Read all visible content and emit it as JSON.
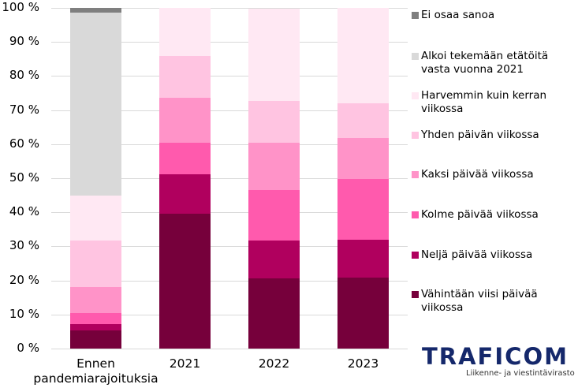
{
  "chart_data": {
    "type": "bar",
    "stacked": true,
    "percent": true,
    "title": "",
    "xlabel": "",
    "ylabel": "",
    "ylim": [
      0,
      100
    ],
    "yticks": [
      "0 %",
      "10 %",
      "20 %",
      "30 %",
      "40 %",
      "50 %",
      "60 %",
      "70 %",
      "80 %",
      "90 %",
      "100 %"
    ],
    "categories": [
      "Ennen pandemiarajoituksia",
      "2021",
      "2022",
      "2023"
    ],
    "series": [
      {
        "name": "Vähintään viisi päivää viikossa",
        "color": "#76003b",
        "values": [
          5.3,
          39.6,
          20.7,
          20.8
        ]
      },
      {
        "name": "Neljä päivää viikossa",
        "color": "#b0005e",
        "values": [
          1.9,
          11.6,
          11.0,
          11.1
        ]
      },
      {
        "name": "Kolme päivää viikossa",
        "color": "#ff5aad",
        "values": [
          3.2,
          9.2,
          14.9,
          17.9
        ]
      },
      {
        "name": "Kaksi päivää viikossa",
        "color": "#ff93c8",
        "values": [
          7.6,
          13.2,
          13.8,
          12.0
        ]
      },
      {
        "name": "Yhden päivän viikossa",
        "color": "#ffc4e1",
        "values": [
          13.8,
          12.3,
          12.3,
          10.2
        ]
      },
      {
        "name": "Harvemmin kuin kerran viikossa",
        "color": "#ffe8f3",
        "values": [
          13.0,
          14.1,
          27.1,
          28.0
        ]
      },
      {
        "name": "Alkoi tekemään etätöitä vasta vuonna 2021",
        "color": "#d9d9d9",
        "values": [
          53.9,
          0,
          0,
          0
        ]
      },
      {
        "name": "Ei osaa sanoa",
        "color": "#7f7f7f",
        "values": [
          1.3,
          0,
          0,
          0
        ]
      }
    ],
    "grid": true,
    "legend_position": "right"
  },
  "axis": {
    "y_labels": [
      "100 %",
      "90 %",
      "80 %",
      "70 %",
      "60 %",
      "50 %",
      "40 %",
      "30 %",
      "20 %",
      "10 %",
      "0 %"
    ],
    "x_labels": [
      "Ennen\npandemiarajoituksia",
      "2021",
      "2022",
      "2023"
    ]
  },
  "legend": [
    {
      "label": "Ei osaa sanoa",
      "color": "#7f7f7f"
    },
    {
      "label": "Alkoi tekemään etätöitä\nvasta vuonna 2021",
      "color": "#d9d9d9"
    },
    {
      "label": "Harvemmin kuin kerran\nviikossa",
      "color": "#ffe8f3"
    },
    {
      "label": "Yhden päivän viikossa",
      "color": "#ffc4e1"
    },
    {
      "label": "Kaksi päivää viikossa",
      "color": "#ff93c8"
    },
    {
      "label": "Kolme päivää viikossa",
      "color": "#ff5aad"
    },
    {
      "label": "Neljä päivää viikossa",
      "color": "#b0005e"
    },
    {
      "label": "Vähintään viisi päivää\nviikossa",
      "color": "#76003b"
    }
  ],
  "logo": {
    "wordmark": "TRAFICOM",
    "subtitle": "Liikenne- ja viestintävirasto",
    "color": "#15286b"
  }
}
